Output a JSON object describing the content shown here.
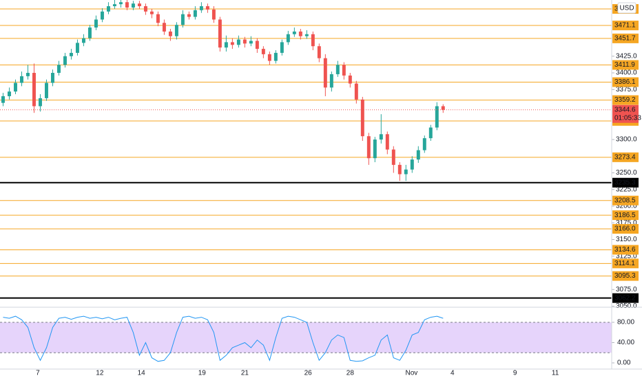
{
  "chart_data": {
    "type": "candlestick",
    "currency": "USD",
    "up_color": "#26a69a",
    "down_color": "#ef5350",
    "open": [
      3355,
      3365,
      3372,
      3385,
      3395,
      3400,
      3350,
      3362,
      3385,
      3400,
      3412,
      3425,
      3430,
      3445,
      3452,
      3468,
      3480,
      3492,
      3500,
      3503,
      3506,
      3498,
      3504,
      3500,
      3492,
      3488,
      3475,
      3462,
      3455,
      3472,
      3488,
      3484,
      3494,
      3500,
      3495,
      3480,
      3438,
      3446,
      3442,
      3450,
      3444,
      3448,
      3436,
      3428,
      3418,
      3430,
      3446,
      3458,
      3462,
      3455,
      3458,
      3440,
      3422,
      3378,
      3398,
      3412,
      3396,
      3384,
      3360,
      3305,
      3272,
      3300,
      3308,
      3285,
      3262,
      3248,
      3255,
      3270,
      3284,
      3302,
      3318,
      3350
    ],
    "high": [
      3370,
      3378,
      3390,
      3402,
      3412,
      3414,
      3368,
      3390,
      3405,
      3418,
      3430,
      3436,
      3450,
      3458,
      3472,
      3486,
      3497,
      3506,
      3510,
      3512,
      3510,
      3508,
      3508,
      3504,
      3496,
      3492,
      3480,
      3466,
      3476,
      3494,
      3492,
      3500,
      3506,
      3504,
      3500,
      3484,
      3456,
      3452,
      3456,
      3454,
      3455,
      3452,
      3440,
      3432,
      3434,
      3450,
      3463,
      3468,
      3466,
      3464,
      3462,
      3444,
      3428,
      3402,
      3418,
      3416,
      3400,
      3388,
      3364,
      3310,
      3304,
      3338,
      3312,
      3290,
      3266,
      3262,
      3275,
      3290,
      3306,
      3322,
      3356,
      3353
    ],
    "low": [
      3350,
      3360,
      3368,
      3380,
      3390,
      3340,
      3342,
      3358,
      3380,
      3396,
      3408,
      3420,
      3426,
      3440,
      3448,
      3464,
      3476,
      3488,
      3496,
      3498,
      3494,
      3494,
      3496,
      3487,
      3482,
      3470,
      3457,
      3448,
      3450,
      3468,
      3480,
      3480,
      3490,
      3490,
      3475,
      3432,
      3432,
      3436,
      3438,
      3438,
      3440,
      3430,
      3422,
      3412,
      3414,
      3426,
      3442,
      3454,
      3450,
      3451,
      3434,
      3416,
      3365,
      3372,
      3394,
      3390,
      3378,
      3354,
      3298,
      3262,
      3266,
      3294,
      3278,
      3250,
      3238,
      3238,
      3250,
      3265,
      3280,
      3298,
      3314,
      3340
    ],
    "close": [
      3365,
      3372,
      3385,
      3395,
      3400,
      3350,
      3362,
      3385,
      3400,
      3412,
      3425,
      3430,
      3445,
      3452,
      3468,
      3480,
      3492,
      3500,
      3503,
      3506,
      3498,
      3504,
      3500,
      3492,
      3488,
      3475,
      3462,
      3455,
      3472,
      3488,
      3484,
      3494,
      3500,
      3495,
      3480,
      3438,
      3446,
      3442,
      3450,
      3444,
      3448,
      3436,
      3428,
      3418,
      3430,
      3446,
      3458,
      3462,
      3455,
      3458,
      3440,
      3422,
      3378,
      3398,
      3412,
      3396,
      3384,
      3360,
      3305,
      3272,
      3300,
      3308,
      3285,
      3262,
      3248,
      3255,
      3270,
      3284,
      3302,
      3318,
      3350,
      3344.6
    ],
    "xlim": [
      -0.5,
      98.2
    ],
    "xticks": [
      {
        "value": 5.6,
        "label": "7"
      },
      {
        "value": 15.6,
        "label": "12"
      },
      {
        "value": 22.3,
        "label": "14"
      },
      {
        "value": 32.1,
        "label": "19"
      },
      {
        "value": 39.0,
        "label": "21"
      },
      {
        "value": 49.2,
        "label": "26"
      },
      {
        "value": 56.0,
        "label": "28"
      },
      {
        "value": 65.9,
        "label": "Nov"
      },
      {
        "value": 72.5,
        "label": "4"
      },
      {
        "value": 82.6,
        "label": "9"
      },
      {
        "value": 89.1,
        "label": "11"
      }
    ],
    "ylim": [
      3049.5,
      3509.3
    ],
    "yticks": [
      {
        "value": 3425,
        "label": "3425.0"
      },
      {
        "value": 3400,
        "label": "3400.0"
      },
      {
        "value": 3375,
        "label": "3375.0"
      },
      {
        "value": 3300,
        "label": "3300.0"
      },
      {
        "value": 3250,
        "label": "3250.0"
      },
      {
        "value": 3225,
        "label": "3225.0"
      },
      {
        "value": 3200,
        "label": "3200.0"
      },
      {
        "value": 3175,
        "label": "3175.0"
      },
      {
        "value": 3150,
        "label": "3150.0"
      },
      {
        "value": 3125,
        "label": "3125.0"
      },
      {
        "value": 3075,
        "label": "3075.0"
      },
      {
        "value": 3050,
        "label": "3050.0"
      }
    ],
    "levels": [
      {
        "value": 3495.9,
        "color": "#f5a623"
      },
      {
        "value": 3471.1,
        "color": "#f5a623"
      },
      {
        "value": 3451.7,
        "color": "#f5a623"
      },
      {
        "value": 3411.9,
        "color": "#f5a623"
      },
      {
        "value": 3386.1,
        "color": "#f5a623"
      },
      {
        "value": 3359.2,
        "color": "#f5a623"
      },
      {
        "value": 3327.9,
        "color": "#f5a623"
      },
      {
        "value": 3273.4,
        "color": "#f5a623"
      },
      {
        "value": 3235.3,
        "color": "#000000"
      },
      {
        "value": 3208.5,
        "color": "#f5a623"
      },
      {
        "value": 3186.5,
        "color": "#f5a623"
      },
      {
        "value": 3166.0,
        "label": "3166.0",
        "color": "#f5a623"
      },
      {
        "value": 3134.6,
        "color": "#f5a623"
      },
      {
        "value": 3114.1,
        "color": "#f5a623"
      },
      {
        "value": 3095.3,
        "color": "#f5a623"
      },
      {
        "value": 3062.2,
        "color": "#000000"
      }
    ],
    "last_price": 3344.6,
    "countdown": "01:05:33",
    "last_color": "#ef5350",
    "oscillator": {
      "color": "#2196f3",
      "band_color": "#e6d4fb",
      "band": [
        20,
        80
      ],
      "ylim": [
        -12.2,
        109.8
      ],
      "yticks": [
        {
          "value": 80,
          "label": "80.00"
        },
        {
          "value": 40,
          "label": "40.00"
        },
        {
          "value": 0,
          "label": "0.00"
        }
      ],
      "values": [
        90,
        88,
        92,
        85,
        70,
        30,
        5,
        30,
        70,
        88,
        90,
        86,
        90,
        92,
        88,
        90,
        87,
        90,
        85,
        88,
        90,
        60,
        15,
        40,
        10,
        3,
        5,
        20,
        60,
        90,
        92,
        88,
        90,
        85,
        60,
        5,
        15,
        30,
        35,
        40,
        30,
        45,
        35,
        5,
        50,
        88,
        92,
        90,
        85,
        80,
        40,
        5,
        20,
        45,
        55,
        50,
        5,
        3,
        4,
        10,
        15,
        45,
        55,
        10,
        5,
        25,
        55,
        60,
        85,
        90,
        92,
        88
      ]
    }
  }
}
